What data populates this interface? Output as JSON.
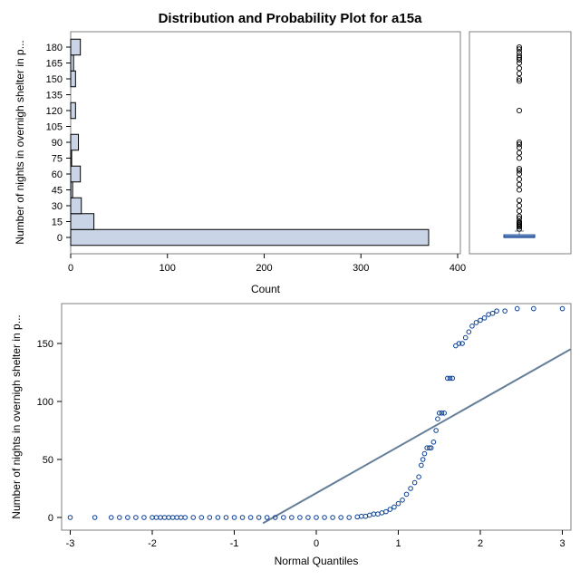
{
  "page_title": "Distribution and Probability Plot for a15a",
  "colors": {
    "bar_fill": "#c9d5e6",
    "bar_stroke": "#000000",
    "marker": "#0b3f94",
    "reference_line": "#667f99",
    "frame": "#7f7f7f"
  },
  "chart_data": [
    {
      "type": "bar",
      "orientation": "horizontal",
      "title": "",
      "xlabel": "Count",
      "ylabel": "Number of nights in overnigh shelter in p...",
      "xlim": [
        0,
        400
      ],
      "x_ticks": [
        0,
        100,
        200,
        300,
        400
      ],
      "y_ticks": [
        0,
        15,
        30,
        45,
        60,
        75,
        90,
        105,
        120,
        135,
        150,
        165,
        180
      ],
      "categories": [
        0,
        15,
        30,
        45,
        60,
        75,
        90,
        105,
        120,
        135,
        150,
        165,
        180
      ],
      "values": [
        370,
        24,
        11,
        2,
        10,
        1,
        8,
        0,
        5,
        0,
        5,
        3,
        10
      ],
      "grid": false
    },
    {
      "type": "box",
      "orientation": "vertical",
      "box": {
        "q1": 0,
        "median": 1,
        "q3": 2.5,
        "whisker_low": 0,
        "whisker_high": 6
      },
      "outliers": [
        8,
        10,
        11,
        12,
        13,
        14,
        15,
        18,
        20,
        25,
        30,
        35,
        45,
        50,
        55,
        60,
        63,
        65,
        75,
        80,
        85,
        88,
        90,
        120,
        148,
        150,
        155,
        160,
        165,
        168,
        170,
        172,
        175,
        178,
        180
      ]
    },
    {
      "type": "scatter",
      "title": "",
      "xlabel": "Normal Quantiles",
      "ylabel": "Number of nights in overnigh shelter in p...",
      "xlim": [
        -3.1,
        3.1
      ],
      "ylim": [
        -5,
        185
      ],
      "x_ticks": [
        -3,
        -2,
        -1,
        0,
        1,
        2,
        3
      ],
      "y_ticks": [
        0,
        50,
        100,
        150
      ],
      "grid": false,
      "reference_line": {
        "intercept": 21,
        "slope": 40
      },
      "series": [
        {
          "points": [
            [
              -3.0,
              0
            ],
            [
              -2.7,
              0
            ],
            [
              -2.5,
              0
            ],
            [
              -2.4,
              0
            ],
            [
              -2.3,
              0
            ],
            [
              -2.2,
              0
            ],
            [
              -2.1,
              0
            ],
            [
              -2.0,
              0
            ],
            [
              -1.95,
              0
            ],
            [
              -1.9,
              0
            ],
            [
              -1.85,
              0
            ],
            [
              -1.8,
              0
            ],
            [
              -1.75,
              0
            ],
            [
              -1.7,
              0
            ],
            [
              -1.65,
              0
            ],
            [
              -1.6,
              0
            ],
            [
              -1.5,
              0
            ],
            [
              -1.4,
              0
            ],
            [
              -1.3,
              0
            ],
            [
              -1.2,
              0
            ],
            [
              -1.1,
              0
            ],
            [
              -1.0,
              0
            ],
            [
              -0.9,
              0
            ],
            [
              -0.8,
              0
            ],
            [
              -0.7,
              0
            ],
            [
              -0.6,
              0
            ],
            [
              -0.5,
              0
            ],
            [
              -0.4,
              0
            ],
            [
              -0.3,
              0
            ],
            [
              -0.2,
              0
            ],
            [
              -0.1,
              0
            ],
            [
              0.0,
              0
            ],
            [
              0.1,
              0
            ],
            [
              0.2,
              0
            ],
            [
              0.3,
              0
            ],
            [
              0.4,
              0
            ],
            [
              0.5,
              0.5
            ],
            [
              0.55,
              1
            ],
            [
              0.6,
              1
            ],
            [
              0.65,
              2
            ],
            [
              0.7,
              3
            ],
            [
              0.75,
              3
            ],
            [
              0.8,
              4
            ],
            [
              0.85,
              5
            ],
            [
              0.9,
              7
            ],
            [
              0.95,
              9
            ],
            [
              1.0,
              12
            ],
            [
              1.05,
              15
            ],
            [
              1.1,
              20
            ],
            [
              1.15,
              25
            ],
            [
              1.2,
              30
            ],
            [
              1.25,
              35
            ],
            [
              1.28,
              45
            ],
            [
              1.3,
              50
            ],
            [
              1.32,
              55
            ],
            [
              1.35,
              60
            ],
            [
              1.38,
              60
            ],
            [
              1.4,
              60
            ],
            [
              1.43,
              65
            ],
            [
              1.46,
              75
            ],
            [
              1.48,
              85
            ],
            [
              1.5,
              90
            ],
            [
              1.53,
              90
            ],
            [
              1.56,
              90
            ],
            [
              1.6,
              120
            ],
            [
              1.63,
              120
            ],
            [
              1.66,
              120
            ],
            [
              1.7,
              148
            ],
            [
              1.74,
              150
            ],
            [
              1.78,
              150
            ],
            [
              1.82,
              155
            ],
            [
              1.86,
              160
            ],
            [
              1.9,
              165
            ],
            [
              1.95,
              168
            ],
            [
              2.0,
              170
            ],
            [
              2.05,
              172
            ],
            [
              2.1,
              175
            ],
            [
              2.15,
              176
            ],
            [
              2.2,
              178
            ],
            [
              2.3,
              178
            ],
            [
              2.45,
              180
            ],
            [
              2.65,
              180
            ],
            [
              3.0,
              180
            ]
          ]
        }
      ]
    }
  ]
}
